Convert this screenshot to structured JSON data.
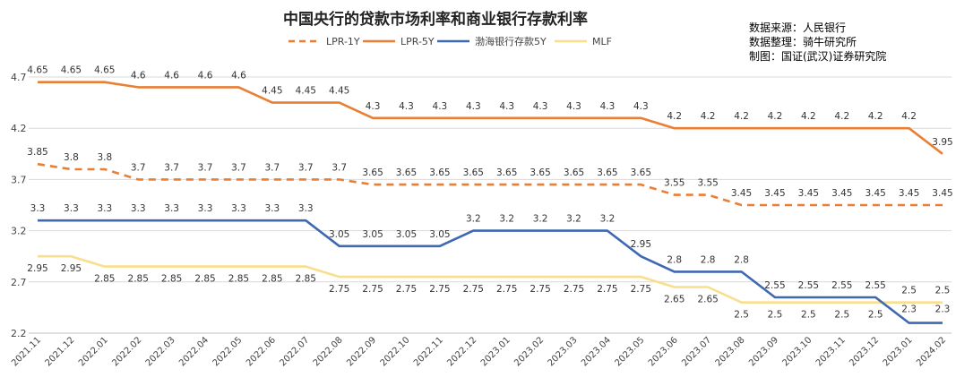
{
  "chart_data": {
    "type": "line",
    "title": "中国央行的贷款市场利率和商业银行存款利率",
    "source_lines": [
      "数据来源：人民银行",
      "数据整理：骑牛研究所",
      "制图：国证(武汉)证券研究院"
    ],
    "x": [
      "2021.11",
      "2021.12",
      "2022.01",
      "2022.02",
      "2022.03",
      "2022.04",
      "2022.05",
      "2022.06",
      "2022.07",
      "2022.08",
      "2022.09",
      "2022.10",
      "2022.11",
      "2022.12",
      "2023.01",
      "2023.02",
      "2023.03",
      "2023.04",
      "2023.05",
      "2023.06",
      "2023.07",
      "2023.08",
      "2023.09",
      "2023.10",
      "2023.11",
      "2023.12",
      "2023.01",
      "2024.02"
    ],
    "yticks": [
      "4.7",
      "4.2",
      "3.7",
      "3.2",
      "2.7",
      "2.2"
    ],
    "ylim": [
      2.2,
      4.7
    ],
    "grid": true,
    "legend_position": "top",
    "series": [
      {
        "name": "LPR-1Y",
        "color": "#E97F35",
        "dash": true,
        "values": [
          3.85,
          3.8,
          3.8,
          3.7,
          3.7,
          3.7,
          3.7,
          3.7,
          3.7,
          3.7,
          3.65,
          3.65,
          3.65,
          3.65,
          3.65,
          3.65,
          3.65,
          3.65,
          3.65,
          3.55,
          3.55,
          3.45,
          3.45,
          3.45,
          3.45,
          3.45,
          3.45,
          3.45
        ]
      },
      {
        "name": "LPR-5Y",
        "color": "#E97F35",
        "dash": false,
        "values": [
          4.65,
          4.65,
          4.65,
          4.6,
          4.6,
          4.6,
          4.6,
          4.45,
          4.45,
          4.45,
          4.3,
          4.3,
          4.3,
          4.3,
          4.3,
          4.3,
          4.3,
          4.3,
          4.3,
          4.2,
          4.2,
          4.2,
          4.2,
          4.2,
          4.2,
          4.2,
          4.2,
          3.95
        ]
      },
      {
        "name": "渤海银行存款5Y",
        "color": "#3E68B1",
        "dash": false,
        "values": [
          3.3,
          3.3,
          3.3,
          3.3,
          3.3,
          3.3,
          3.3,
          3.3,
          3.3,
          3.05,
          3.05,
          3.05,
          3.05,
          3.2,
          3.2,
          3.2,
          3.2,
          3.2,
          2.95,
          2.8,
          2.8,
          2.8,
          2.55,
          2.55,
          2.55,
          2.55,
          2.3,
          2.3
        ]
      },
      {
        "name": "MLF",
        "color": "#F9DE8C",
        "dash": false,
        "values": [
          2.95,
          2.95,
          2.85,
          2.85,
          2.85,
          2.85,
          2.85,
          2.85,
          2.85,
          2.75,
          2.75,
          2.75,
          2.75,
          2.75,
          2.75,
          2.75,
          2.75,
          2.75,
          2.75,
          2.65,
          2.65,
          2.5,
          2.5,
          2.5,
          2.5,
          2.5,
          2.5,
          2.5
        ]
      }
    ]
  }
}
